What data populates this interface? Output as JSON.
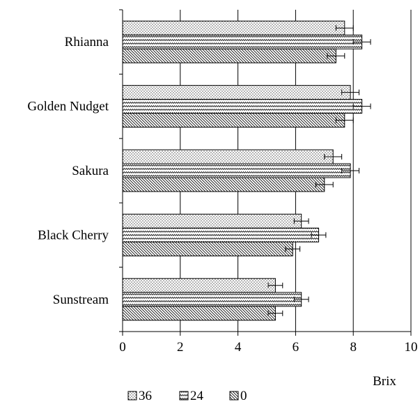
{
  "chart_data": {
    "type": "bar",
    "orientation": "horizontal",
    "categories": [
      "Rhianna",
      "Golden Nudget",
      "Sakura",
      "Black Cherry",
      "Sunstream"
    ],
    "series": [
      {
        "name": "36",
        "pattern": "dots",
        "values": [
          7.7,
          7.9,
          7.3,
          6.2,
          5.3
        ],
        "errors": [
          0.3,
          0.3,
          0.3,
          0.25,
          0.25
        ]
      },
      {
        "name": "24",
        "pattern": "zigzag",
        "values": [
          8.3,
          8.3,
          7.9,
          6.8,
          6.2
        ],
        "errors": [
          0.3,
          0.3,
          0.3,
          0.25,
          0.25
        ]
      },
      {
        "name": "0",
        "pattern": "diagonal",
        "values": [
          7.4,
          7.7,
          7.0,
          5.9,
          5.3
        ],
        "errors": [
          0.3,
          0.3,
          0.3,
          0.25,
          0.25
        ]
      }
    ],
    "xlabel": "Brix",
    "xlim": [
      0,
      10
    ],
    "xticks": [
      "0",
      "2",
      "4",
      "6",
      "8",
      "10"
    ],
    "grid": "vertical",
    "legend": "bottom"
  }
}
